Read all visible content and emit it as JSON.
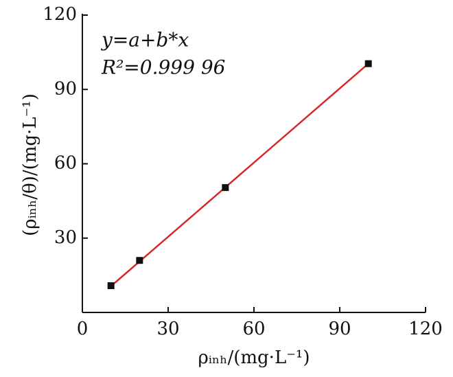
{
  "chart_data": {
    "type": "scatter",
    "annotations": [
      "y=a+b*x",
      "R²=0.999 96"
    ],
    "xlabel": "ρᵢₙₕ/(mg·L⁻¹)",
    "ylabel": "(ρᵢₙₕ/θ)/(mg·L⁻¹)",
    "series": [
      {
        "color": "#111111",
        "x": [
          10,
          20,
          50,
          100
        ],
        "values": [
          10.8,
          21.0,
          50.4,
          100.4
        ]
      }
    ],
    "fit_line": {
      "color": "#d62728",
      "x": [
        10,
        100
      ],
      "values": [
        10.6,
        100.4
      ]
    },
    "xlim": [
      0,
      120
    ],
    "xticks": [
      0,
      30,
      60,
      90,
      120
    ],
    "ylim": [
      0,
      120
    ],
    "yticks": [
      30,
      60,
      90,
      120
    ]
  }
}
